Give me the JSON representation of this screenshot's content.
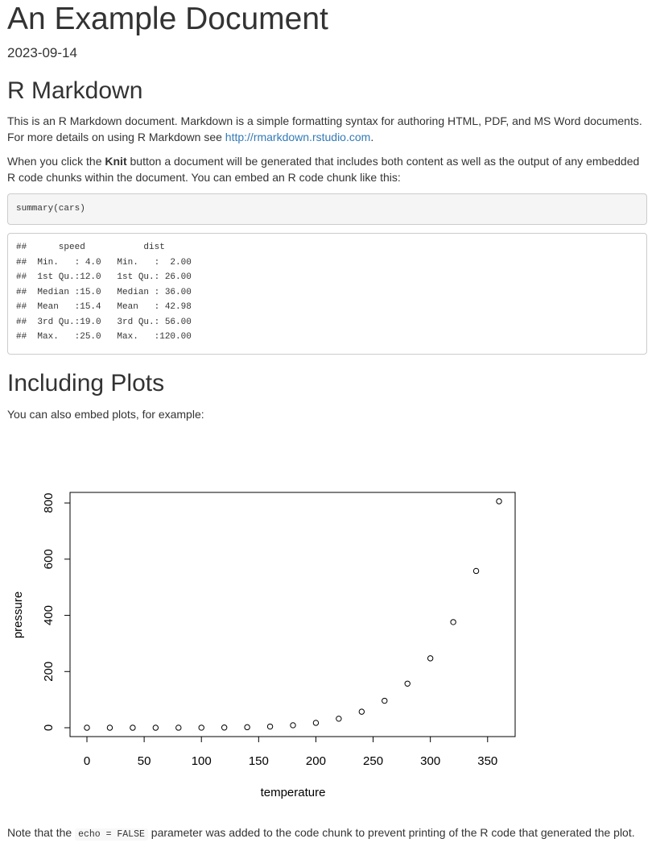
{
  "document": {
    "title": "An Example Document",
    "date": "2023-09-14"
  },
  "section_rmarkdown": {
    "heading": "R Markdown",
    "para1_text": "This is an R Markdown document. Markdown is a simple formatting syntax for authoring HTML, PDF, and MS Word documents. For more details on using R Markdown see ",
    "para1_link": "http://rmarkdown.rstudio.com",
    "para1_end": ".",
    "para2_before": "When you click the ",
    "para2_bold": "Knit",
    "para2_after": " button a document will be generated that includes both content as well as the output of any embedded R code chunks within the document. You can embed an R code chunk like this:",
    "code": "summary(cars)",
    "output_lines": [
      "##      speed           dist       ",
      "##  Min.   : 4.0   Min.   :  2.00  ",
      "##  1st Qu.:12.0   1st Qu.: 26.00  ",
      "##  Median :15.0   Median : 36.00  ",
      "##  Mean   :15.4   Mean   : 42.98  ",
      "##  3rd Qu.:19.0   3rd Qu.: 56.00  ",
      "##  Max.   :25.0   Max.   :120.00  "
    ]
  },
  "section_plots": {
    "heading": "Including Plots",
    "intro": "You can also embed plots, for example:",
    "note_before": "Note that the ",
    "note_code": "echo = FALSE",
    "note_after": " parameter was added to the code chunk to prevent printing of the R code that generated the plot."
  },
  "chart_data": {
    "type": "scatter",
    "title": "",
    "xlabel": "temperature",
    "ylabel": "pressure",
    "xlim": [
      0,
      360
    ],
    "ylim": [
      0,
      806
    ],
    "x_ticks": [
      0,
      50,
      100,
      150,
      200,
      250,
      300,
      350
    ],
    "y_ticks": [
      0,
      200,
      400,
      600,
      800
    ],
    "grid": false,
    "marker": "open-circle",
    "x": [
      0,
      20,
      40,
      60,
      80,
      100,
      120,
      140,
      160,
      180,
      200,
      220,
      240,
      260,
      280,
      300,
      320,
      340,
      360
    ],
    "y": [
      0.0002,
      0.0012,
      0.006,
      0.03,
      0.09,
      0.27,
      0.75,
      1.85,
      4.2,
      8.8,
      17.3,
      32.1,
      57.0,
      96.0,
      157.0,
      247.0,
      376.0,
      558.0,
      806.0
    ]
  }
}
